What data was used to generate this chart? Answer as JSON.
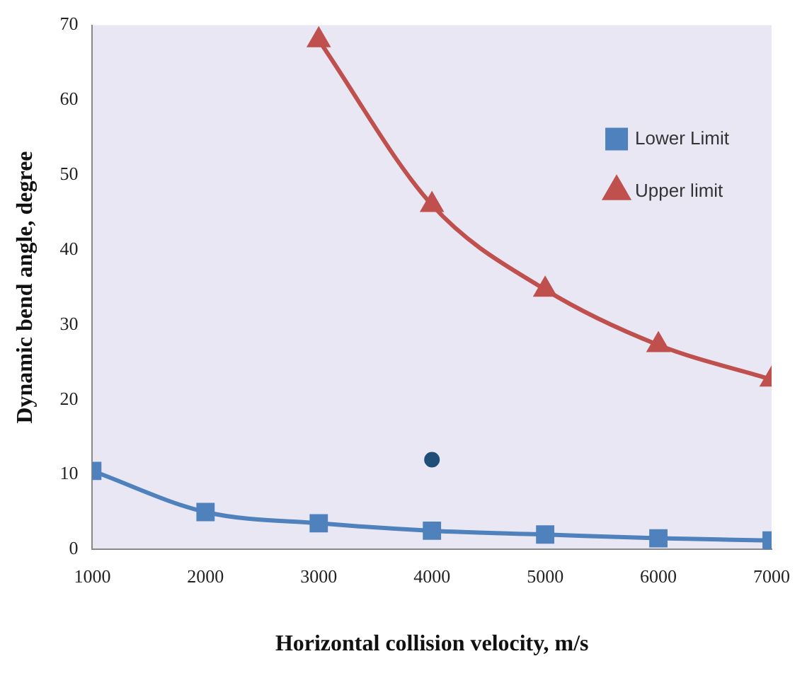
{
  "chart_data": {
    "type": "line",
    "xlabel": "Horizontal collision velocity, m/s",
    "ylabel": "Dynamic bend angle, degree",
    "x": [
      1000,
      2000,
      3000,
      4000,
      5000,
      6000,
      7000
    ],
    "series": [
      {
        "name": "Lower Limit",
        "color": "#4f81bd",
        "marker": "square",
        "values": [
          10.5,
          5,
          3.5,
          2.5,
          2,
          1.5,
          1.2
        ]
      },
      {
        "name": "Upper limit",
        "color": "#c0504d",
        "marker": "triangle",
        "values": [
          null,
          null,
          68,
          46,
          34.7,
          27.3,
          22.7
        ]
      },
      {
        "type": "scatter",
        "color": "#1f4e79",
        "marker": "circle",
        "x": [
          4000
        ],
        "values": [
          12
        ]
      }
    ],
    "xlim": [
      1000,
      7000
    ],
    "xticks": [
      1000,
      2000,
      3000,
      4000,
      5000,
      6000,
      7000
    ],
    "ylim": [
      0,
      70
    ],
    "yticks": [
      0,
      10,
      20,
      30,
      40,
      50,
      60,
      70
    ],
    "grid": false,
    "legend": "top right"
  }
}
